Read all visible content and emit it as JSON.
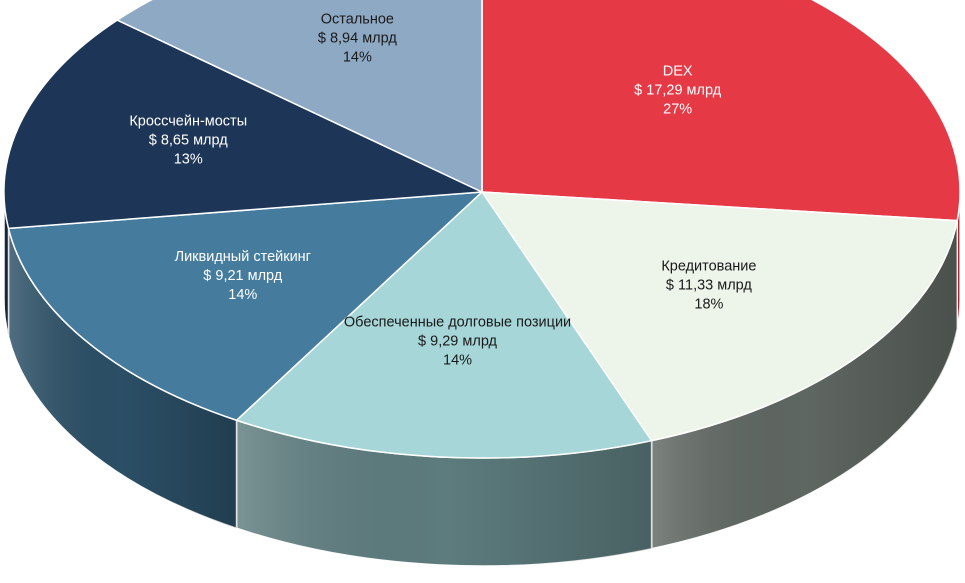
{
  "chart_data": {
    "type": "pie",
    "style": "3d",
    "unit": "$ млрд",
    "slices": [
      {
        "label": "DEX",
        "value_text": "$ 17,29 млрд",
        "percent_text": "27%",
        "value": 17.29,
        "percent": 27,
        "color": "#e63946",
        "side_color": "#b02631",
        "text_color": "#ffffff"
      },
      {
        "label": "Кредитование",
        "value_text": "$ 11,33 млрд",
        "percent_text": "18%",
        "value": 11.33,
        "percent": 18,
        "color": "#edf5ea",
        "side_color": "#5f6762",
        "text_color": "#1a1a1a"
      },
      {
        "label": "Обеспеченные долговые позиции",
        "value_text": "$ 9,29 млрд",
        "percent_text": "14%",
        "value": 9.29,
        "percent": 14,
        "color": "#a6d6d8",
        "side_color": "#5d7c7e",
        "text_color": "#1a1a1a"
      },
      {
        "label": "Ликвидный стейкинг",
        "value_text": "$ 9,21 млрд",
        "percent_text": "14%",
        "value": 9.21,
        "percent": 14,
        "color": "#457b9d",
        "side_color": "#2b4f66",
        "text_color": "#ffffff"
      },
      {
        "label": "Кроссчейн-мосты",
        "value_text": "$ 8,65 млрд",
        "percent_text": "13%",
        "value": 8.65,
        "percent": 13,
        "color": "#1d3557",
        "side_color": "#14243d",
        "text_color": "#ffffff"
      },
      {
        "label": "Остальное",
        "value_text": "$ 8,94 млрд",
        "percent_text": "14%",
        "value": 8.94,
        "percent": 14,
        "color": "#8ea9c4",
        "side_color": "#607a94",
        "text_color": "#1a1a1a"
      }
    ]
  }
}
